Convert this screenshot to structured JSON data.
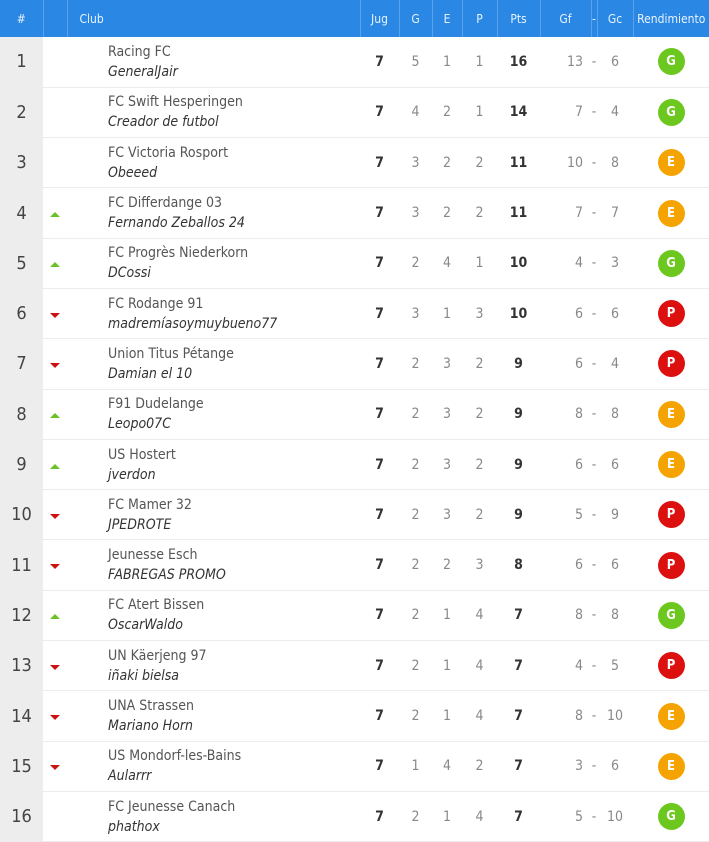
{
  "headers": {
    "pos": "#",
    "club": "Club",
    "jug": "Jug",
    "g": "G",
    "e": "E",
    "p": "P",
    "pts": "Pts",
    "gf": "Gf",
    "sep": "-",
    "gc": "Gc",
    "rend": "Rendimiento"
  },
  "colors": {
    "header": "#2a88e4",
    "G": "#6cc81e",
    "E": "#f5a300",
    "P": "#dd1010",
    "up": "#6cc028",
    "down": "#cc1111"
  },
  "rows": [
    {
      "pos": "1",
      "trend": "",
      "team": "Racing FC",
      "manager": "GeneralJair",
      "jug": "7",
      "g": "5",
      "e": "1",
      "p": "1",
      "pts": "16",
      "gf": "13",
      "gc": "6",
      "rend": "G"
    },
    {
      "pos": "2",
      "trend": "",
      "team": "FC Swift Hesperingen",
      "manager": "Creador de futbol",
      "jug": "7",
      "g": "4",
      "e": "2",
      "p": "1",
      "pts": "14",
      "gf": "7",
      "gc": "4",
      "rend": "G"
    },
    {
      "pos": "3",
      "trend": "",
      "team": "FC Victoria Rosport",
      "manager": "Obeeed",
      "jug": "7",
      "g": "3",
      "e": "2",
      "p": "2",
      "pts": "11",
      "gf": "10",
      "gc": "8",
      "rend": "E"
    },
    {
      "pos": "4",
      "trend": "up",
      "team": "FC Differdange 03",
      "manager": "Fernando Zeballos 24",
      "jug": "7",
      "g": "3",
      "e": "2",
      "p": "2",
      "pts": "11",
      "gf": "7",
      "gc": "7",
      "rend": "E"
    },
    {
      "pos": "5",
      "trend": "up",
      "team": "FC Progrès Niederkorn",
      "manager": "DCossi",
      "jug": "7",
      "g": "2",
      "e": "4",
      "p": "1",
      "pts": "10",
      "gf": "4",
      "gc": "3",
      "rend": "G"
    },
    {
      "pos": "6",
      "trend": "down",
      "team": "FC Rodange 91",
      "manager": "madremíasoymuybueno77",
      "jug": "7",
      "g": "3",
      "e": "1",
      "p": "3",
      "pts": "10",
      "gf": "6",
      "gc": "6",
      "rend": "P"
    },
    {
      "pos": "7",
      "trend": "down",
      "team": "Union Titus Pétange",
      "manager": "Damian el 10",
      "jug": "7",
      "g": "2",
      "e": "3",
      "p": "2",
      "pts": "9",
      "gf": "6",
      "gc": "4",
      "rend": "P"
    },
    {
      "pos": "8",
      "trend": "up",
      "team": "F91 Dudelange",
      "manager": "Leopo07C",
      "jug": "7",
      "g": "2",
      "e": "3",
      "p": "2",
      "pts": "9",
      "gf": "8",
      "gc": "8",
      "rend": "E"
    },
    {
      "pos": "9",
      "trend": "up",
      "team": "US Hostert",
      "manager": "jverdon",
      "jug": "7",
      "g": "2",
      "e": "3",
      "p": "2",
      "pts": "9",
      "gf": "6",
      "gc": "6",
      "rend": "E"
    },
    {
      "pos": "10",
      "trend": "down",
      "team": "FC Mamer 32",
      "manager": "JPEDROTE",
      "jug": "7",
      "g": "2",
      "e": "3",
      "p": "2",
      "pts": "9",
      "gf": "5",
      "gc": "9",
      "rend": "P"
    },
    {
      "pos": "11",
      "trend": "down",
      "team": "Jeunesse Esch",
      "manager": "FABREGAS PROMO",
      "jug": "7",
      "g": "2",
      "e": "2",
      "p": "3",
      "pts": "8",
      "gf": "6",
      "gc": "6",
      "rend": "P"
    },
    {
      "pos": "12",
      "trend": "up",
      "team": "FC Atert Bissen",
      "manager": "OscarWaldo",
      "jug": "7",
      "g": "2",
      "e": "1",
      "p": "4",
      "pts": "7",
      "gf": "8",
      "gc": "8",
      "rend": "G"
    },
    {
      "pos": "13",
      "trend": "down",
      "team": "UN Käerjeng 97",
      "manager": "iñaki bielsa",
      "jug": "7",
      "g": "2",
      "e": "1",
      "p": "4",
      "pts": "7",
      "gf": "4",
      "gc": "5",
      "rend": "P"
    },
    {
      "pos": "14",
      "trend": "down",
      "team": "UNA Strassen",
      "manager": "Mariano Horn",
      "jug": "7",
      "g": "2",
      "e": "1",
      "p": "4",
      "pts": "7",
      "gf": "8",
      "gc": "10",
      "rend": "E"
    },
    {
      "pos": "15",
      "trend": "down",
      "team": "US Mondorf-les-Bains",
      "manager": "Aularrr",
      "jug": "7",
      "g": "1",
      "e": "4",
      "p": "2",
      "pts": "7",
      "gf": "3",
      "gc": "6",
      "rend": "E"
    },
    {
      "pos": "16",
      "trend": "",
      "team": "FC Jeunesse Canach",
      "manager": "phathox",
      "jug": "7",
      "g": "2",
      "e": "1",
      "p": "4",
      "pts": "7",
      "gf": "5",
      "gc": "10",
      "rend": "G"
    }
  ]
}
